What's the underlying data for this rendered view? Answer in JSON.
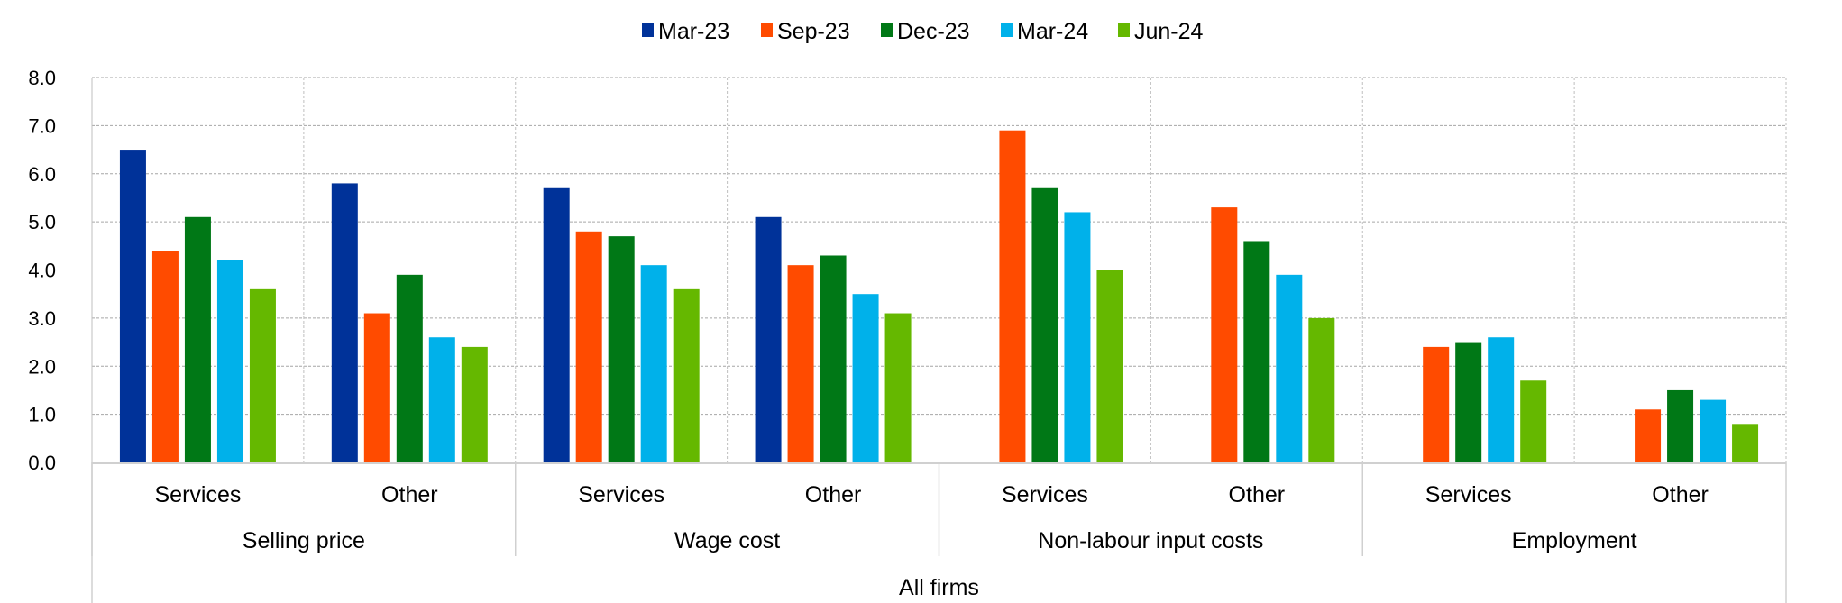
{
  "chart_data": {
    "type": "bar",
    "title": "",
    "xlabel": "",
    "ylabel": "",
    "ylim": [
      0,
      8
    ],
    "yticks": [
      "0.0",
      "1.0",
      "2.0",
      "3.0",
      "4.0",
      "5.0",
      "6.0",
      "7.0",
      "8.0"
    ],
    "grid": true,
    "legend_position": "top-center",
    "top_group": "All firms",
    "groups": [
      {
        "label": "Selling price",
        "subcategories": [
          "Services",
          "Other"
        ]
      },
      {
        "label": "Wage cost",
        "subcategories": [
          "Services",
          "Other"
        ]
      },
      {
        "label": "Non-labour input costs",
        "subcategories": [
          "Services",
          "Other"
        ]
      },
      {
        "label": "Employment",
        "subcategories": [
          "Services",
          "Other"
        ]
      }
    ],
    "series": [
      {
        "name": "Mar-23",
        "color": "#003299",
        "values": [
          6.5,
          5.8,
          5.7,
          5.1,
          null,
          null,
          null,
          null
        ]
      },
      {
        "name": "Sep-23",
        "color": "#FF4B00",
        "values": [
          4.4,
          3.1,
          4.8,
          4.1,
          6.9,
          5.3,
          2.4,
          1.1
        ]
      },
      {
        "name": "Dec-23",
        "color": "#007816",
        "values": [
          5.1,
          3.9,
          4.7,
          4.3,
          5.7,
          4.6,
          2.5,
          1.5
        ]
      },
      {
        "name": "Mar-24",
        "color": "#00B1EA",
        "values": [
          4.2,
          2.6,
          4.1,
          3.5,
          5.2,
          3.9,
          2.6,
          1.3
        ]
      },
      {
        "name": "Jun-24",
        "color": "#65B800",
        "values": [
          3.6,
          2.4,
          3.6,
          3.1,
          4.0,
          3.0,
          1.7,
          0.8
        ]
      }
    ]
  }
}
